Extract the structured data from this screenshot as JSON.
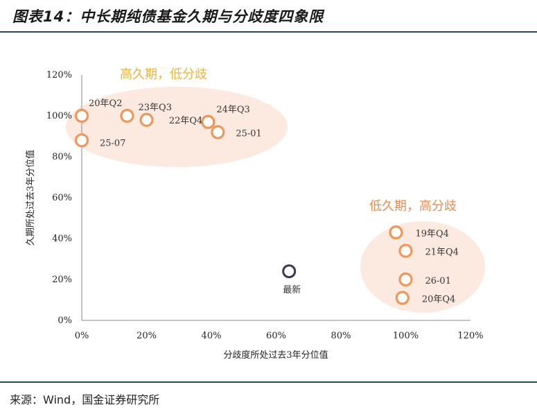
{
  "header": {
    "title": "图表14：中长期纯债基金久期与分歧度四象限"
  },
  "footer": {
    "source": "来源：Wind，国金证券研究所"
  },
  "colors": {
    "point": "#f0965a",
    "latest": "#2f3a4a",
    "zone_fill": "#fbe3d6",
    "zone_text_high": "#f2b233",
    "zone_text_low": "#ee8a4e",
    "axis": "#888888"
  },
  "chart_data": {
    "type": "scatter",
    "xlabel": "分歧度所处过去3年分位值",
    "ylabel": "久期所处过去3年分位值",
    "xlim": [
      0,
      120
    ],
    "ylim": [
      0,
      120
    ],
    "xticks": [
      "0%",
      "20%",
      "40%",
      "60%",
      "80%",
      "100%",
      "120%"
    ],
    "yticks": [
      "0%",
      "20%",
      "40%",
      "60%",
      "80%",
      "100%",
      "120%"
    ],
    "grid": false,
    "zones": [
      {
        "label": "高久期，低分歧"
      },
      {
        "label": "低久期，高分歧"
      }
    ],
    "points": [
      {
        "label": "20年Q2",
        "x": 0,
        "y": 100
      },
      {
        "label": "25-07",
        "x": 0,
        "y": 88
      },
      {
        "label": "",
        "x": 14,
        "y": 100
      },
      {
        "label": "23年Q3",
        "x": 20,
        "y": 98
      },
      {
        "label": "24年Q3",
        "x": 39,
        "y": 97
      },
      {
        "label": "22年Q4",
        "x": 39,
        "y": 97
      },
      {
        "label": "25-01",
        "x": 42,
        "y": 92
      },
      {
        "label": "19年Q4",
        "x": 97,
        "y": 43
      },
      {
        "label": "21年Q4",
        "x": 100,
        "y": 34
      },
      {
        "label": "26-01",
        "x": 100,
        "y": 20
      },
      {
        "label": "20年Q4",
        "x": 99,
        "y": 11
      }
    ],
    "latest": {
      "label": "最新",
      "x": 64,
      "y": 24
    }
  }
}
